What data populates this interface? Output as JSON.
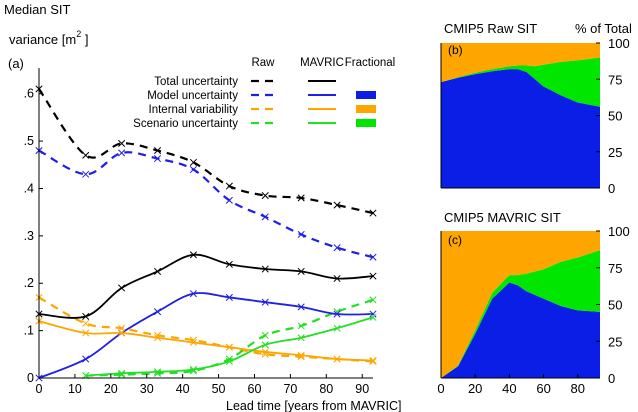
{
  "chart_data": [
    {
      "panel": "(a)",
      "type": "line",
      "ylabel_line1": "Median SIT",
      "ylabel_line2": "variance [m",
      "ylabel_sup": "2",
      "ylabel_end": " ]",
      "xlabel": "Lead time [years from MAVRIC]",
      "xlim": [
        0,
        93
      ],
      "ylim": [
        0,
        0.65
      ],
      "xticks": [
        0,
        10,
        20,
        30,
        40,
        50,
        60,
        70,
        80,
        90
      ],
      "yticks": [
        0,
        0.1,
        0.2,
        0.3,
        0.4,
        0.5,
        0.6
      ],
      "legend": {
        "placement": "top-right",
        "column_headers": [
          "Raw",
          "MAVRIC",
          "Fractional"
        ],
        "entries": [
          {
            "label": "Total uncertainty",
            "color": "#000000",
            "fractional": false
          },
          {
            "label": "Model uncertainty",
            "color": "#1f1fe6",
            "fractional": true,
            "swatch": "#0a1ee6"
          },
          {
            "label": "Internal variability",
            "color": "#ffa500",
            "fractional": true,
            "swatch": "#ffa500"
          },
          {
            "label": "Scenario uncertainty",
            "color": "#22e022",
            "fractional": true,
            "swatch": "#00e600"
          }
        ]
      },
      "series": [
        {
          "name": "Total uncertainty",
          "style": "Raw",
          "color": "#000000",
          "x": [
            0,
            13,
            23,
            33,
            43,
            53,
            63,
            73,
            83,
            93
          ],
          "y": [
            0.61,
            0.47,
            0.495,
            0.48,
            0.455,
            0.405,
            0.385,
            0.38,
            0.365,
            0.348
          ]
        },
        {
          "name": "Model uncertainty",
          "style": "Raw",
          "color": "#1f1fe6",
          "x": [
            0,
            13,
            23,
            33,
            43,
            53,
            63,
            73,
            83,
            93
          ],
          "y": [
            0.48,
            0.43,
            0.475,
            0.463,
            0.44,
            0.375,
            0.34,
            0.303,
            0.275,
            0.255
          ]
        },
        {
          "name": "Internal variability",
          "style": "Raw",
          "color": "#ffa500",
          "x": [
            0,
            13,
            23,
            33,
            43,
            53,
            63,
            73,
            83,
            93
          ],
          "y": [
            0.17,
            0.115,
            0.105,
            0.09,
            0.08,
            0.065,
            0.05,
            0.045,
            0.04,
            0.035
          ]
        },
        {
          "name": "Scenario uncertainty",
          "style": "Raw",
          "color": "#22e022",
          "x": [
            13,
            23,
            33,
            43,
            53,
            63,
            73,
            83,
            93
          ],
          "y": [
            0.005,
            0.007,
            0.01,
            0.015,
            0.04,
            0.09,
            0.11,
            0.14,
            0.165
          ]
        },
        {
          "name": "Total uncertainty",
          "style": "MAVRIC",
          "color": "#000000",
          "x": [
            0,
            13,
            23,
            33,
            43,
            53,
            63,
            73,
            83,
            93
          ],
          "y": [
            0.135,
            0.13,
            0.19,
            0.225,
            0.26,
            0.24,
            0.23,
            0.225,
            0.21,
            0.215
          ]
        },
        {
          "name": "Model uncertainty",
          "style": "MAVRIC",
          "color": "#1f1fe6",
          "x": [
            0,
            13,
            23,
            33,
            43,
            53,
            63,
            73,
            83,
            93
          ],
          "y": [
            0.0,
            0.04,
            0.095,
            0.14,
            0.178,
            0.17,
            0.16,
            0.15,
            0.135,
            0.135
          ]
        },
        {
          "name": "Internal variability",
          "style": "MAVRIC",
          "color": "#ffa500",
          "x": [
            0,
            13,
            23,
            33,
            43,
            53,
            63,
            73,
            83,
            93
          ],
          "y": [
            0.12,
            0.095,
            0.095,
            0.085,
            0.075,
            0.065,
            0.055,
            0.048,
            0.04,
            0.037
          ]
        },
        {
          "name": "Scenario uncertainty",
          "style": "MAVRIC",
          "color": "#22e022",
          "x": [
            13,
            23,
            33,
            43,
            53,
            63,
            73,
            83,
            93
          ],
          "y": [
            0.005,
            0.01,
            0.013,
            0.018,
            0.035,
            0.07,
            0.085,
            0.105,
            0.128
          ]
        }
      ]
    },
    {
      "panel": "(b)",
      "type": "area",
      "title": "CMIP5 Raw SIT",
      "right_label": "% of Total",
      "xlim": [
        0,
        93
      ],
      "ylim": [
        0,
        100
      ],
      "yticks": [
        0,
        25,
        50,
        75,
        100
      ],
      "x": [
        0,
        10,
        20,
        30,
        40,
        45,
        50,
        55,
        60,
        70,
        80,
        93
      ],
      "series": [
        {
          "name": "Model uncertainty",
          "color": "#0a1ee6",
          "values": [
            73,
            76,
            78.5,
            80.5,
            82,
            82,
            80,
            75,
            70,
            64,
            59,
            56
          ]
        },
        {
          "name": "Scenario uncertainty",
          "color": "#00e600",
          "values": [
            0,
            0.5,
            1,
            1.5,
            2,
            2.5,
            4.5,
            9,
            15,
            23,
            29,
            34
          ]
        },
        {
          "name": "Internal variability",
          "color": "#ffa500",
          "values": [
            27,
            23.5,
            20.5,
            18,
            16,
            15.5,
            15.5,
            16,
            15,
            13,
            12,
            10
          ]
        }
      ]
    },
    {
      "panel": "(c)",
      "type": "area",
      "title": "CMIP5 MAVRIC SIT",
      "xlim": [
        0,
        93
      ],
      "ylim": [
        0,
        100
      ],
      "xticks": [
        0,
        20,
        40,
        60,
        80
      ],
      "yticks": [
        0,
        25,
        50,
        75,
        100
      ],
      "x": [
        0,
        10,
        20,
        30,
        40,
        45,
        50,
        60,
        70,
        80,
        93
      ],
      "series": [
        {
          "name": "Model uncertainty",
          "color": "#0a1ee6",
          "values": [
            0,
            8,
            30,
            54,
            65,
            63,
            59,
            54,
            49,
            46,
            45
          ]
        },
        {
          "name": "Scenario uncertainty",
          "color": "#00e600",
          "values": [
            0,
            0.5,
            2.5,
            4,
            5,
            7,
            12,
            20,
            30,
            36,
            42
          ]
        },
        {
          "name": "Internal variability",
          "color": "#ffa500",
          "values": [
            100,
            91.5,
            67.5,
            42,
            30,
            30,
            29,
            26,
            21,
            18,
            13
          ]
        }
      ]
    }
  ]
}
